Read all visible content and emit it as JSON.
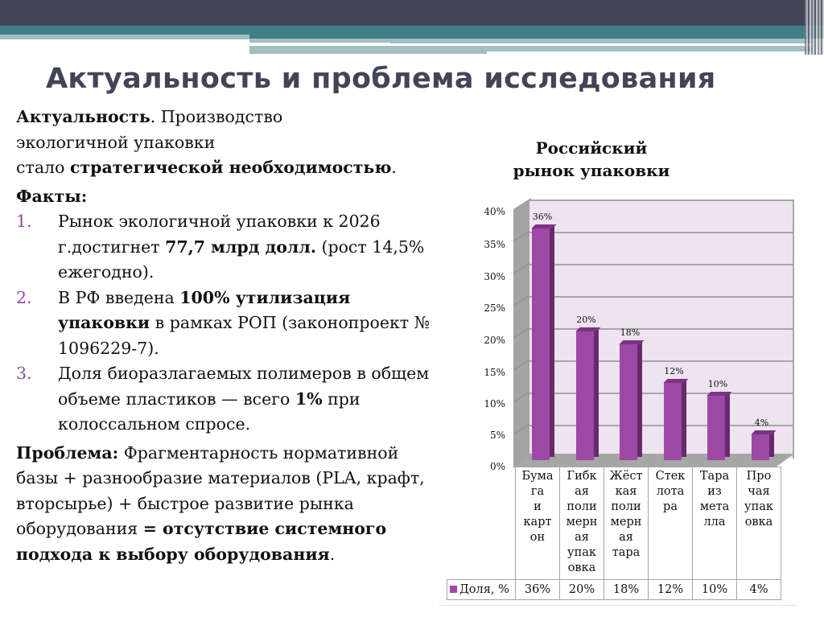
{
  "slide": {
    "title": "Актуальность и проблема исследования",
    "accent_colors": {
      "header_dark": "#424556",
      "header_teal": "#437e84",
      "header_light": "#a3bfc3",
      "list_number": "#8e4a9c",
      "bar": "#9e48a6"
    }
  },
  "body": {
    "relevance": {
      "label": "Актуальность",
      "text1": ". Производство",
      "text2": "экологичной упаковки",
      "text3": "стало ",
      "bold": "стратегической необходимостью",
      "end": "."
    },
    "facts_heading": "Факты:",
    "facts": [
      {
        "num": "1.",
        "pre": "Рынок экологичной упаковки к 2026 г.достигнет ",
        "bold": "77,7 млрд долл.",
        "post": " (рост 14,5% ежегодно)."
      },
      {
        "num": "2.",
        "pre": "В РФ введена ",
        "bold": "100% утилизация упаковки",
        "post": " в рамках РОП (законопроект № 1096229-7)."
      },
      {
        "num": "3.",
        "pre": "Доля биоразлагаемых полимеров в общем объеме пластиков — всего ",
        "bold": "1%",
        "post": " при колоссальном спросе."
      }
    ],
    "problem": {
      "label": "Проблема:",
      "text": " Фрагментарность нормативной базы + разнообразие материалов (PLA, крафт, вторсырье) + быстрое развитие рынка оборудования ",
      "bold": "= отсутствие системного подхода к выбору оборудования",
      "end": "."
    }
  },
  "chart_data": {
    "type": "bar",
    "title": "Российский рынок упаковки",
    "categories": [
      "Бумага и картон",
      "Гибкая полимерная упаковка",
      "Жёсткая полимерная тара",
      "Стеклотара",
      "Тара из металла",
      "Прочая упаковка"
    ],
    "category_labels_wrapped": [
      "Бума га и карт он",
      "Гибк ая поли мерн ая упак овка",
      "Жёст кая поли мерн ая тара",
      "Стек лота ра",
      "Тара из мета лла",
      "Про чая упак овка"
    ],
    "series": [
      {
        "name": "Доля, %",
        "values": [
          36,
          20,
          18,
          12,
          10,
          4
        ]
      }
    ],
    "value_labels": [
      "36%",
      "20%",
      "18%",
      "12%",
      "10%",
      "4%"
    ],
    "yticks": [
      "40%",
      "35%",
      "30%",
      "25%",
      "20%",
      "15%",
      "10%",
      "5%",
      "0%"
    ],
    "ylim": [
      0,
      40
    ],
    "xlabel": "",
    "ylabel": "",
    "grid": true,
    "style": "3d-column",
    "legend": {
      "position": "data-table",
      "label": "Доля, %"
    }
  }
}
